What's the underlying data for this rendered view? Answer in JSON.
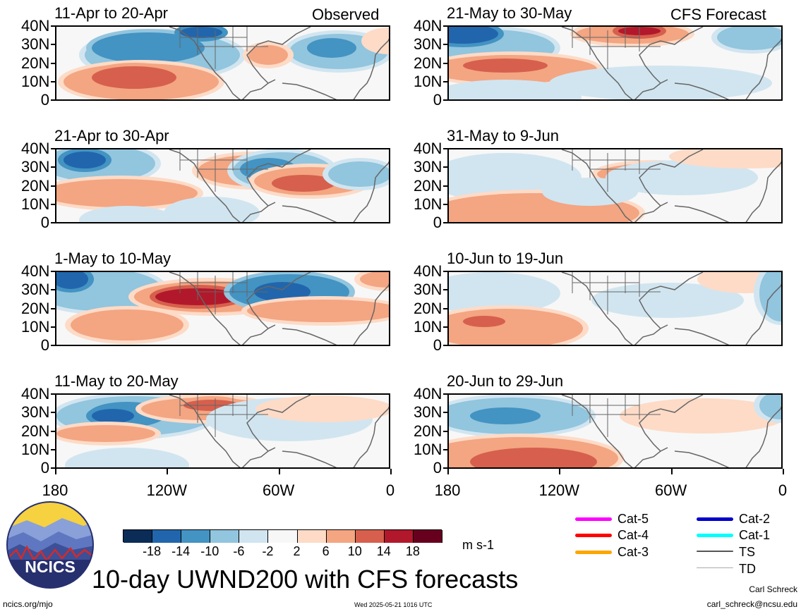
{
  "header": {
    "left": "Observed",
    "right": "CFS Forecast"
  },
  "panels": [
    {
      "title": "11-Apr to 20-Apr"
    },
    {
      "title": "21-Apr to 30-Apr"
    },
    {
      "title": "1-May to 10-May"
    },
    {
      "title": "11-May to 20-May"
    },
    {
      "title": "21-May to 30-May"
    },
    {
      "title": "31-May to 9-Jun"
    },
    {
      "title": "10-Jun to 19-Jun"
    },
    {
      "title": "20-Jun to 29-Jun"
    }
  ],
  "lat_labels": [
    "40N",
    "30N",
    "20N",
    "10N",
    "0"
  ],
  "lon_labels": [
    "180",
    "120W",
    "60W",
    "0"
  ],
  "colorbar": {
    "unit": "m s-1",
    "labels": [
      "-18",
      "-14",
      "-10",
      "-6",
      "-2",
      "2",
      "6",
      "10",
      "14",
      "18"
    ],
    "colors": [
      "#0b2c56",
      "#2166ac",
      "#4393c3",
      "#92c5de",
      "#d1e5f0",
      "#f7f7f7",
      "#fddbc7",
      "#f4a582",
      "#d6604d",
      "#b2182b",
      "#67001f"
    ]
  },
  "track_legend": [
    {
      "label": "Cat-5",
      "color": "#ff00ff"
    },
    {
      "label": "Cat-4",
      "color": "#ff0000"
    },
    {
      "label": "Cat-3",
      "color": "#ffa500"
    },
    {
      "label": "Cat-2",
      "color": "#0000cc"
    },
    {
      "label": "Cat-1",
      "color": "#00ffff"
    },
    {
      "label": "TS",
      "color": "#555555"
    },
    {
      "label": "TD",
      "color": "#aaaaaa"
    }
  ],
  "logo": {
    "text": "NCICS"
  },
  "title": "10-day UWND200 with CFS forecasts",
  "footer": {
    "url": "ncics.org/mjo",
    "timestamp": "Wed 2025-05-21 1016 UTC",
    "author": "Carl Schreck",
    "email": "carl_schreck@ncsu.edu"
  }
}
